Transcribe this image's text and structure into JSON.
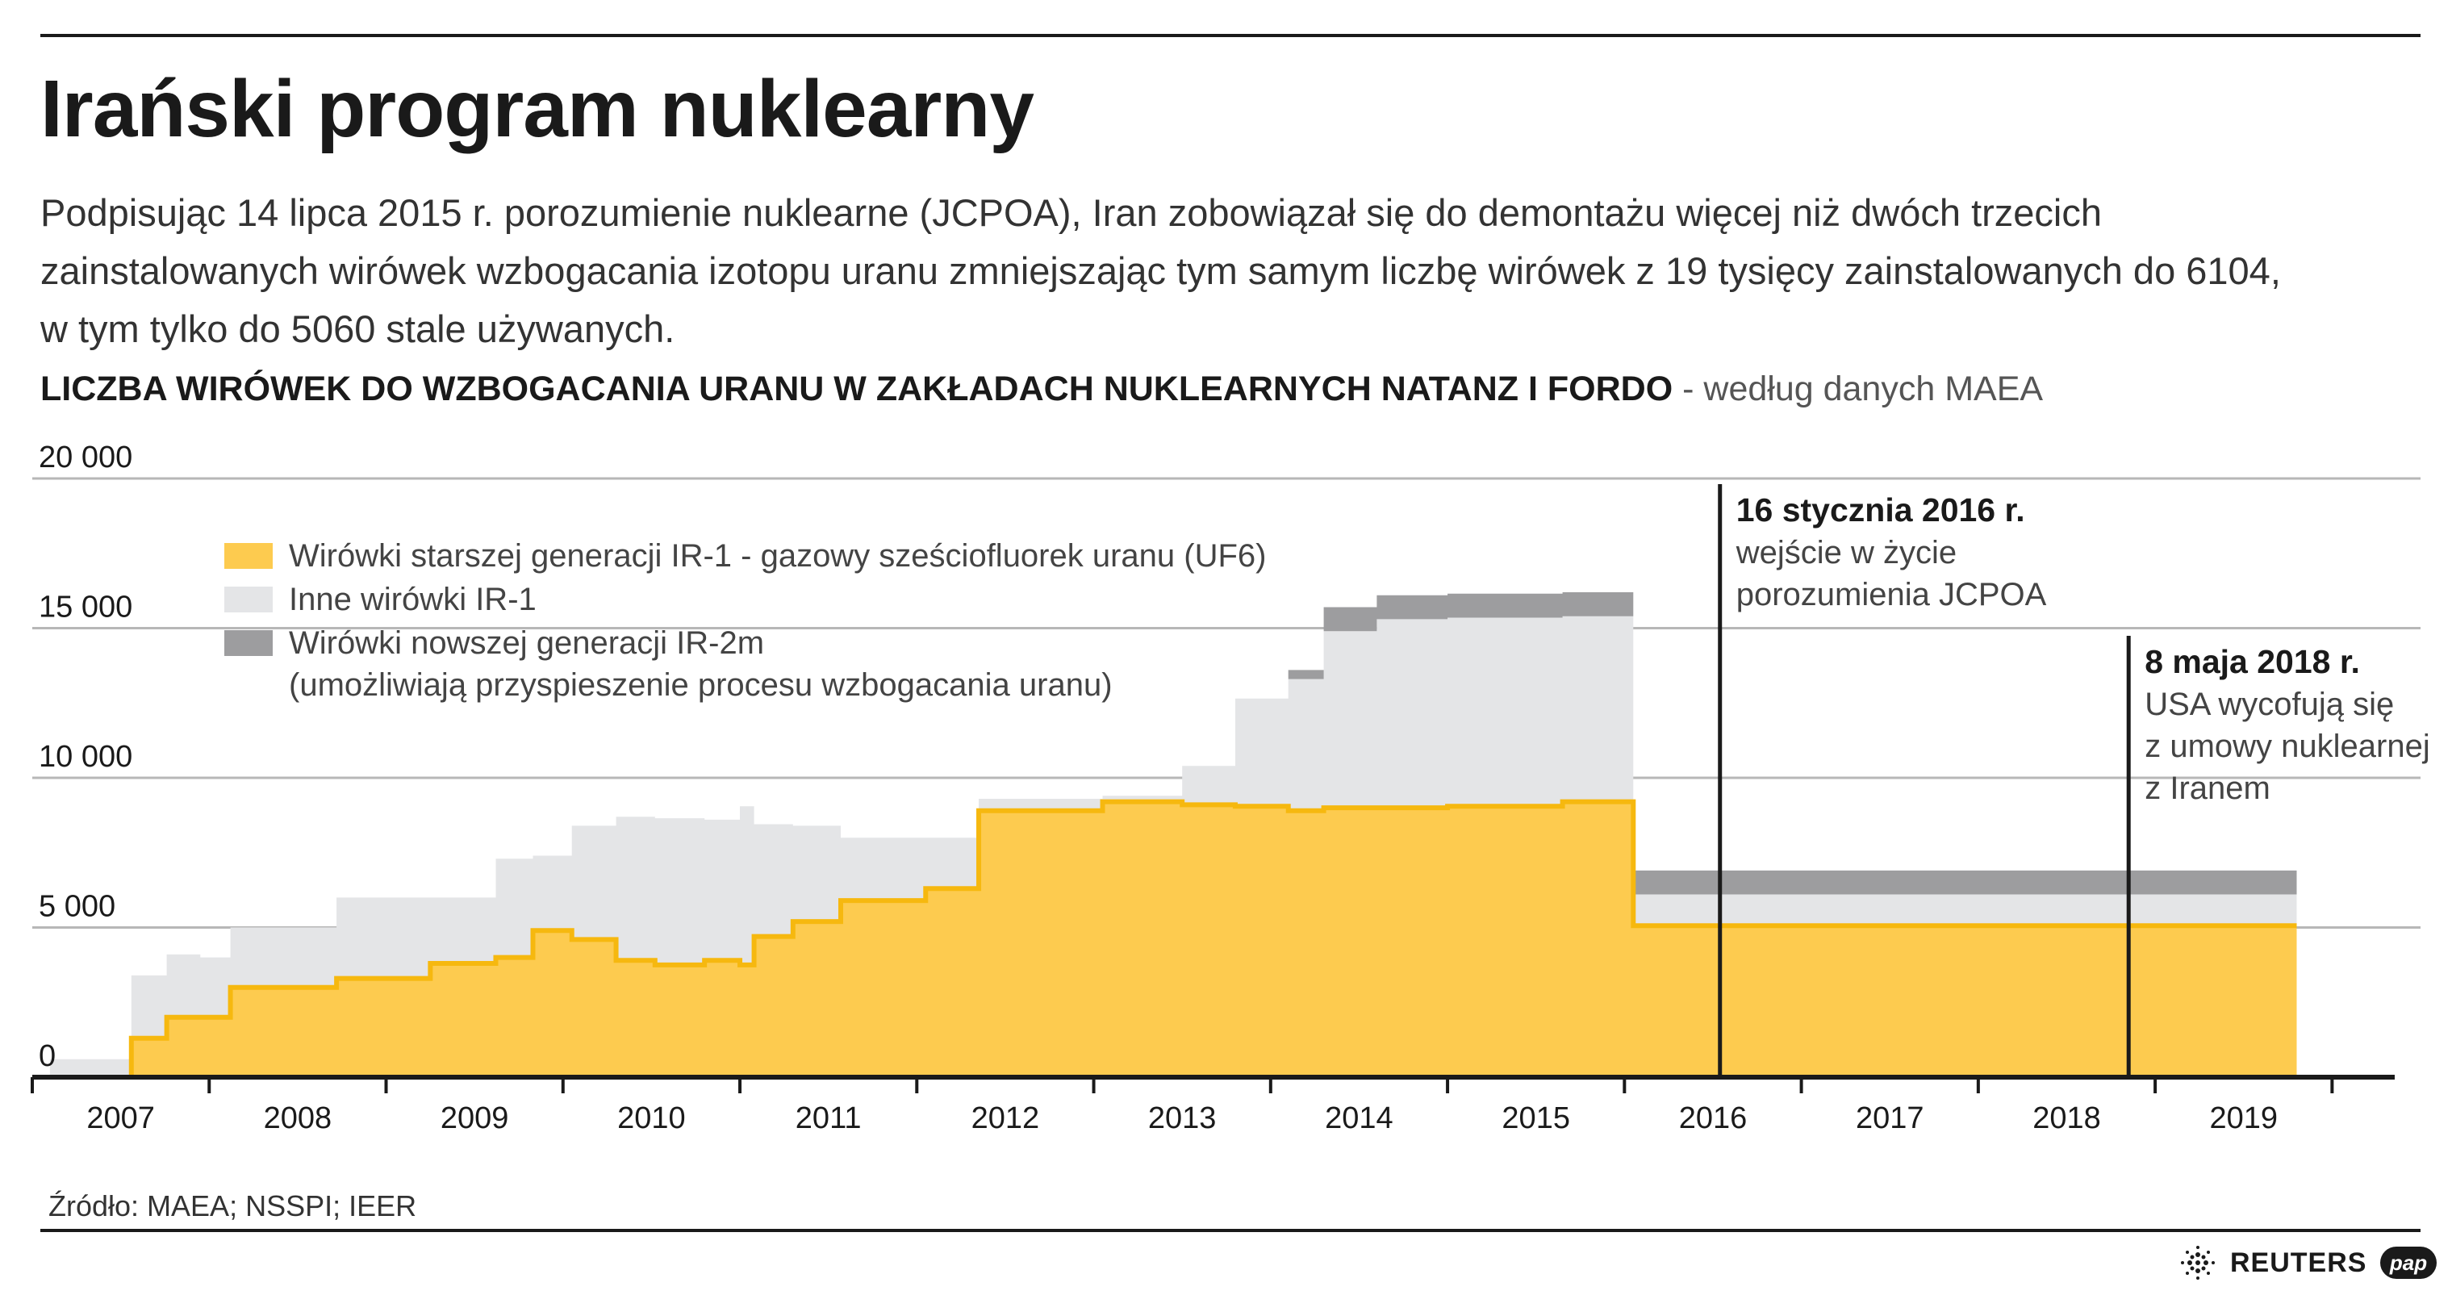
{
  "title": "Irański program nuklearny",
  "intro": "Podpisując 14 lipca 2015 r. porozumienie nuklearne (JCPOA), Iran zobowiązał się do demontażu więcej niż dwóch trzecich zainstalowanych wirówek wzbogacania izotopu uranu zmniejszając tym samym liczbę wirówek  z 19 tysięcy zainstalowanych do 6104, w tym tylko do 5060 stale używanych.",
  "chart_heading": {
    "bold": "LICZBA WIRÓWEK DO WZBOGACANIA URANU W ZAKŁADACH NUKLEARNYCH NATANZ I FORDO",
    "rest": " - według danych MAEA"
  },
  "source": "Źródło: MAEA; NSSPI; IEER",
  "logos": {
    "reuters": "REUTERS",
    "pap": "pap"
  },
  "chart_data": {
    "type": "area",
    "title": "LICZBA WIRÓWEK DO WZBOGACANIA URANU W ZAKŁADACH NUKLEARNYCH NATANZ I FORDO",
    "subtitle": " - według danych MAEA",
    "step": true,
    "stacked": true,
    "xlim": [
      2006.5,
      2020.0
    ],
    "ylim": [
      0,
      20000
    ],
    "y_ticks": [
      {
        "value": 0,
        "label": "0"
      },
      {
        "value": 5000,
        "label": "5 000"
      },
      {
        "value": 10000,
        "label": "10 000"
      },
      {
        "value": 15000,
        "label": "15 000"
      },
      {
        "value": 20000,
        "label": "20 000"
      }
    ],
    "x_tick_labels": [
      "2007",
      "2008",
      "2009",
      "2010",
      "2011",
      "2012",
      "2013",
      "2014",
      "2015",
      "2016",
      "2017",
      "2018",
      "2019"
    ],
    "grid": "horizontal",
    "legend_position": "top-left",
    "colors": {
      "ir1_enriching": "#fdcb4f",
      "ir1_enriching_line": "#f6b80f",
      "ir1_other": "#e4e5e7",
      "ir2m": "#9d9d9f",
      "grid": "#b7b7b7",
      "axis": "#1a1a1a"
    },
    "series": [
      {
        "name": "Wirówki starszej generacji IR-1 - gazowy sześciofluorek uranu (UF6)",
        "key": "ir1_enriching",
        "x": [
          2006.6,
          2006.83,
          2007.06,
          2007.26,
          2007.62,
          2007.9,
          2008.22,
          2008.75,
          2008.98,
          2009.12,
          2009.33,
          2009.55,
          2009.8,
          2010.02,
          2010.3,
          2010.5,
          2010.58,
          2010.8,
          2011.07,
          2011.55,
          2011.85,
          2012.27,
          2012.55,
          2013.0,
          2013.3,
          2013.6,
          2013.8,
          2014.1,
          2014.5,
          2014.8,
          2015.15,
          2015.55,
          2015.55,
          2017.0,
          2018.0,
          2019.3
        ],
        "y": [
          0,
          0,
          1300,
          2000,
          3000,
          3000,
          3300,
          3800,
          3800,
          4000,
          4900,
          4600,
          3900,
          3750,
          3900,
          3750,
          4700,
          5200,
          5900,
          6300,
          8900,
          8900,
          9200,
          9100,
          9050,
          8900,
          9000,
          9000,
          9050,
          9050,
          9200,
          9200,
          5060,
          5060,
          5060,
          5060
        ]
      },
      {
        "name": "Inne wirówki IR-1",
        "key": "ir1_other",
        "x": [
          2006.6,
          2006.83,
          2007.06,
          2007.26,
          2007.45,
          2007.9,
          2008.22,
          2008.75,
          2008.98,
          2009.12,
          2009.33,
          2009.55,
          2009.8,
          2010.02,
          2010.3,
          2010.5,
          2010.58,
          2010.8,
          2011.07,
          2011.55,
          2011.85,
          2012.27,
          2012.55,
          2013.0,
          2013.3,
          2013.6,
          2013.8,
          2014.1,
          2014.5,
          2014.8,
          2015.15,
          2015.55,
          2015.55,
          2017.0,
          2018.0,
          2019.3
        ],
        "y": [
          600,
          600,
          2100,
          2100,
          2000,
          2000,
          2700,
          2200,
          2200,
          3300,
          2500,
          3800,
          4800,
          4900,
          4700,
          5300,
          3750,
          3200,
          2100,
          1700,
          400,
          400,
          200,
          1300,
          3600,
          4400,
          5900,
          6300,
          6300,
          6300,
          6200,
          6200,
          1044,
          1044,
          1044,
          1044
        ]
      },
      {
        "name": "Wirówki nowszej generacji IR-2m",
        "extra_legend_line": "(umożliwiają przyspieszenie procesu wzbogacania uranu)",
        "key": "ir2m",
        "x": [
          2006.6,
          2013.3,
          2013.6,
          2013.8,
          2014.1,
          2015.55
        ],
        "y": [
          0,
          0,
          300,
          800,
          800,
          800
        ]
      }
    ],
    "annotations": [
      {
        "x": 2016.04,
        "title": "16 stycznia 2016 r.",
        "text": "wejście w życie porozumienia JCPOA",
        "lines": [
          "wejście w życie",
          "porozumienia JCPOA"
        ]
      },
      {
        "x": 2018.35,
        "title": "8 maja 2018 r.",
        "text": "USA wycofują się z umowy nuklearnej z Iranem",
        "lines": [
          "USA wycofują się",
          "z umowy nuklearnej",
          "z Iranem"
        ]
      }
    ]
  }
}
